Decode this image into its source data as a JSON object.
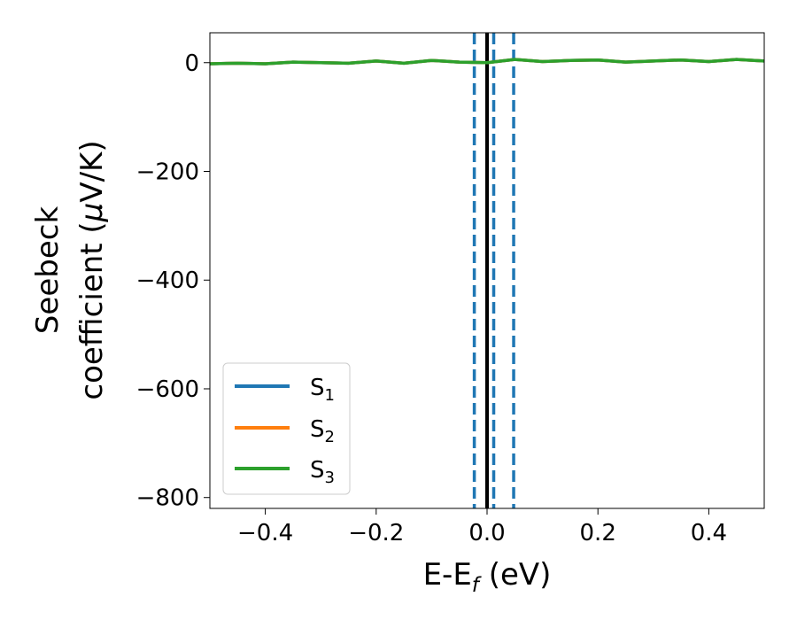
{
  "chart_data": {
    "type": "line",
    "xlabel": "E-E",
    "xlabel_sub": "f",
    "xlabel_unit": " (eV)",
    "ylabel_line1": "Seebeck",
    "ylabel_line2": "coefficient  (",
    "ylabel_mu": "μ",
    "ylabel_unit": "V/K)",
    "xlim": [
      -0.5,
      0.5
    ],
    "ylim": [
      -820,
      55
    ],
    "x_ticks": [
      -0.4,
      -0.2,
      0.0,
      0.2,
      0.4
    ],
    "x_tick_labels": [
      "−0.4",
      "−0.2",
      "0.0",
      "0.2",
      "0.4"
    ],
    "y_ticks": [
      0,
      -200,
      -400,
      -600,
      -800
    ],
    "y_tick_labels": [
      "0",
      "−200",
      "−400",
      "−600",
      "−800"
    ],
    "grid": false,
    "legend_position": "lower-left",
    "vlines": [
      {
        "x": 0.0,
        "style": "solid",
        "color": "#000000"
      },
      {
        "x": -0.023,
        "style": "dashed",
        "color": "#1f77b4"
      },
      {
        "x": 0.012,
        "style": "dashed",
        "color": "#1f77b4"
      },
      {
        "x": 0.048,
        "style": "dashed",
        "color": "#1f77b4"
      }
    ],
    "series": [
      {
        "name": "S",
        "sub": "1",
        "color": "#1f77b4",
        "x": [
          -0.5,
          -0.45,
          -0.4,
          -0.35,
          -0.3,
          -0.25,
          -0.2,
          -0.15,
          -0.1,
          -0.05,
          0.0,
          0.05,
          0.1,
          0.15,
          0.2,
          0.25,
          0.3,
          0.35,
          0.4,
          0.45,
          0.5
        ],
        "y": [
          -2,
          -1,
          -2,
          1,
          0,
          -1,
          3,
          -1,
          4,
          1,
          0,
          6,
          2,
          4,
          5,
          1,
          3,
          5,
          2,
          6,
          3
        ]
      },
      {
        "name": "S",
        "sub": "2",
        "color": "#ff7f0e",
        "x": [
          -0.5,
          -0.45,
          -0.4,
          -0.35,
          -0.3,
          -0.25,
          -0.2,
          -0.15,
          -0.1,
          -0.05,
          0.0,
          0.05,
          0.1,
          0.15,
          0.2,
          0.25,
          0.3,
          0.35,
          0.4,
          0.45,
          0.5
        ],
        "y": [
          -2,
          -1,
          -2,
          1,
          0,
          -1,
          3,
          -1,
          4,
          1,
          0,
          6,
          2,
          4,
          5,
          1,
          3,
          5,
          2,
          6,
          3
        ]
      },
      {
        "name": "S",
        "sub": "3",
        "color": "#2ca02c",
        "x": [
          -0.5,
          -0.45,
          -0.4,
          -0.35,
          -0.3,
          -0.25,
          -0.2,
          -0.15,
          -0.1,
          -0.05,
          0.0,
          0.05,
          0.1,
          0.15,
          0.2,
          0.25,
          0.3,
          0.35,
          0.4,
          0.45,
          0.5
        ],
        "y": [
          -2,
          -1,
          -2,
          1,
          0,
          -1,
          3,
          -1,
          4,
          1,
          0,
          6,
          2,
          4,
          5,
          1,
          3,
          5,
          2,
          6,
          3
        ]
      }
    ]
  }
}
